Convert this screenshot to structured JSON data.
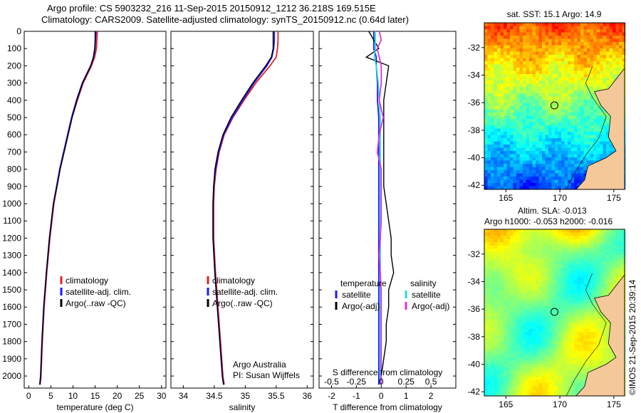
{
  "header": {
    "line1": "Argo profile: CS 5903232_216 11-Sep-2015 20150912_1212 36.218S 169.515E",
    "line2": "Climatology: CARS2009. Satellite-adjusted climatology: synTS_20150912.nc (0.64d later)"
  },
  "colors": {
    "climatology": "#e02020",
    "satellite": "#1a1aff",
    "argo": "#000000",
    "sal_satellite": "#22dddd",
    "sal_argo": "#dd33dd",
    "land": "#f5c89a"
  },
  "chart_data": [
    {
      "type": "line",
      "name": "temperature-panel",
      "xlabel": "temperature (deg C)",
      "xlim": [
        -1,
        31
      ],
      "xticks": [
        0,
        5,
        10,
        15,
        20,
        25,
        30
      ],
      "ylim": [
        0,
        2070
      ],
      "yticks": [
        0,
        100,
        200,
        300,
        400,
        500,
        600,
        700,
        800,
        900,
        1000,
        1100,
        1200,
        1300,
        1400,
        1500,
        1600,
        1700,
        1800,
        1900,
        2000
      ],
      "y_reversed": true,
      "depth": [
        0,
        50,
        100,
        150,
        200,
        300,
        400,
        500,
        600,
        700,
        800,
        900,
        1000,
        1200,
        1400,
        1600,
        1800,
        2000,
        2050
      ],
      "series": [
        {
          "name": "climatology",
          "values": [
            15.5,
            15.4,
            15.3,
            14.9,
            14.2,
            12.3,
            11.0,
            9.8,
            8.9,
            8.0,
            7.1,
            6.4,
            5.7,
            4.8,
            4.1,
            3.5,
            3.1,
            2.8,
            2.6
          ]
        },
        {
          "name": "satellite-adj. clim.",
          "values": [
            15.2,
            15.1,
            15.0,
            14.7,
            14.0,
            12.1,
            10.8,
            9.7,
            8.8,
            7.9,
            7.0,
            6.3,
            5.6,
            4.7,
            4.0,
            3.4,
            3.0,
            2.7,
            2.5
          ]
        },
        {
          "name": "Argo(..raw -QC)",
          "values": [
            15.0,
            15.0,
            14.9,
            14.6,
            14.0,
            12.2,
            10.9,
            9.8,
            8.9,
            8.0,
            7.1,
            6.4,
            5.6,
            4.7,
            4.0,
            3.4,
            3.0,
            2.7,
            2.5
          ]
        }
      ],
      "legend": [
        "climatology",
        "satellite-adj. clim.",
        "Argo(..raw -QC)"
      ],
      "legend_position": "lower-center"
    },
    {
      "type": "line",
      "name": "salinity-panel",
      "xlabel": "salinity",
      "xlim": [
        33.8,
        36.1
      ],
      "xticks": [
        34,
        34.5,
        35,
        35.5,
        36
      ],
      "ylim": [
        0,
        2070
      ],
      "y_reversed": true,
      "depth": [
        0,
        50,
        100,
        150,
        200,
        300,
        400,
        500,
        600,
        700,
        800,
        900,
        1000,
        1200,
        1400,
        1600,
        1800,
        2000,
        2050
      ],
      "series": [
        {
          "name": "climatology",
          "values": [
            35.53,
            35.53,
            35.52,
            35.5,
            35.4,
            35.17,
            34.98,
            34.8,
            34.66,
            34.58,
            34.53,
            34.5,
            34.49,
            34.49,
            34.52,
            34.56,
            34.6,
            34.64,
            34.66
          ]
        },
        {
          "name": "satellite-adj. clim.",
          "values": [
            35.47,
            35.47,
            35.46,
            35.43,
            35.35,
            35.14,
            34.96,
            34.79,
            34.65,
            34.57,
            34.52,
            34.49,
            34.48,
            34.48,
            34.51,
            34.55,
            34.59,
            34.63,
            34.65
          ]
        },
        {
          "name": "Argo(..raw -QC)",
          "values": [
            35.45,
            35.45,
            35.45,
            35.42,
            35.33,
            35.12,
            34.94,
            34.77,
            34.64,
            34.56,
            34.51,
            34.49,
            34.48,
            34.48,
            34.51,
            34.55,
            34.59,
            34.63,
            34.65
          ]
        }
      ],
      "legend": [
        "climatology",
        "satellite-adj. clim.",
        "Argo(..raw -QC)"
      ],
      "legend_position": "lower-center",
      "annotation": [
        "Argo Australia",
        "PI: Susan Wijffels"
      ]
    },
    {
      "type": "line",
      "name": "difference-panel",
      "xlabel": "T difference from climatology",
      "xlim": [
        -2.5,
        3.0
      ],
      "xticks": [
        -2,
        -1,
        0,
        1,
        2
      ],
      "top_axis_label": "S difference from climatology",
      "top_axis_ticks": [
        "-0.5",
        "-0.25",
        "0",
        "0.25",
        "0.5"
      ],
      "top_axis_values": [
        -0.5,
        -0.25,
        0,
        0.25,
        0.5
      ],
      "top_axis_range": [
        -0.625,
        0.75
      ],
      "ylim": [
        0,
        2070
      ],
      "y_reversed": true,
      "depth": [
        0,
        50,
        100,
        150,
        200,
        300,
        400,
        500,
        600,
        700,
        800,
        900,
        1000,
        1100,
        1200,
        1300,
        1400,
        1500,
        1600,
        1700,
        1800,
        1900,
        2000,
        2050
      ],
      "series": [
        {
          "name": "temperature satellite",
          "values": [
            -0.3,
            -0.3,
            -0.3,
            -0.2,
            -0.2,
            -0.15,
            -0.15,
            -0.1,
            -0.1,
            -0.1,
            -0.1,
            -0.1,
            -0.1,
            -0.1,
            -0.1,
            -0.1,
            -0.1,
            -0.1,
            -0.1,
            -0.1,
            -0.1,
            -0.1,
            -0.1,
            -0.1
          ]
        },
        {
          "name": "temperature Argo(-adj)",
          "values": [
            -0.5,
            -0.3,
            -0.1,
            -0.6,
            0.3,
            0.2,
            0.1,
            0.1,
            0.1,
            0.1,
            0.1,
            0.1,
            0.2,
            0.3,
            0.4,
            0.4,
            0.5,
            0.3,
            0.3,
            0.2,
            0.2,
            0.1,
            0.0,
            0.0
          ]
        },
        {
          "name": "salinity satellite",
          "values": [
            -0.06,
            -0.06,
            -0.06,
            -0.07,
            -0.05,
            -0.03,
            -0.02,
            -0.01,
            -0.01,
            -0.01,
            -0.01,
            -0.01,
            -0.01,
            -0.01,
            -0.01,
            -0.01,
            -0.01,
            -0.01,
            -0.01,
            -0.01,
            -0.01,
            -0.01,
            -0.01,
            -0.01
          ]
        },
        {
          "name": "salinity Argo(-adj)",
          "values": [
            -0.02,
            0.0,
            -0.04,
            -0.02,
            0.0,
            0.0,
            -0.02,
            0.02,
            -0.02,
            -0.04,
            0.0,
            0.0,
            0.0,
            0.0,
            -0.01,
            -0.02,
            -0.01,
            0.0,
            0.0,
            0.0,
            0.0,
            0.0,
            0.0,
            0.0
          ]
        }
      ],
      "legend_groups": [
        {
          "title": "temperature",
          "items": [
            "satellite",
            "Argo(-adj)"
          ]
        },
        {
          "title": "salinity",
          "items": [
            "satellite",
            "Argo(-adj)"
          ]
        }
      ],
      "legend_position": "lower-center"
    },
    {
      "type": "heatmap",
      "name": "sst-map",
      "title": "sat. SST: 15.1  Argo: 14.9",
      "xticks": [
        165,
        170,
        175
      ],
      "yticks": [
        -32,
        -34,
        -36,
        -38,
        -40,
        -42
      ],
      "xlim": [
        163,
        176
      ],
      "ylim": [
        -42.3,
        -30.2
      ],
      "colormap": "jet",
      "argo_position": [
        169.5,
        -36.2
      ]
    },
    {
      "type": "heatmap",
      "name": "sla-map",
      "title_line1": "Altim. SLA: -0.013",
      "title_line2": "Argo h1000: -0.053 h2000: -0.016",
      "xticks": [
        165,
        170,
        175
      ],
      "yticks": [
        -32,
        -34,
        -36,
        -38,
        -40,
        -42
      ],
      "xlim": [
        163,
        176
      ],
      "ylim": [
        -42.3,
        -30.2
      ],
      "colormap": "jet",
      "argo_position": [
        169.5,
        -36.2
      ]
    }
  ],
  "footer": {
    "credit": "©IMOS 21-Sep-2015 20:39:14"
  }
}
